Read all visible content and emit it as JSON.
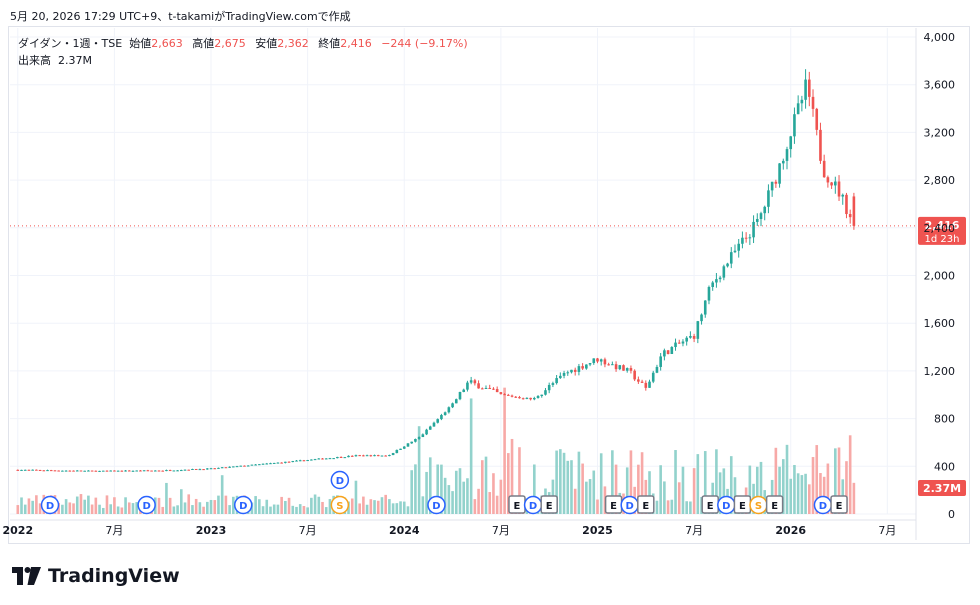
{
  "header": {
    "text": "5月 20, 2026 17:29 UTC+9、t-takamiがTradingView.comで作成"
  },
  "legend": {
    "symbol": "ダイダン・1週・TSE",
    "open_label": "始値",
    "open": "2,663",
    "high_label": "高値",
    "high": "2,675",
    "low_label": "安値",
    "low": "2,362",
    "close_label": "終値",
    "close": "2,416",
    "change": "−244 (−9.17%)",
    "volume_label": "出来高",
    "volume": "2.37M"
  },
  "price_tag": {
    "price": "2,416",
    "countdown": "1d 23h"
  },
  "volume_tag": "2.37M",
  "footer": {
    "brand": "TradingView"
  },
  "colors": {
    "up": "#26a69a",
    "down": "#ef5350",
    "up_vol": "#92d2cc",
    "down_vol": "#f7a9a7",
    "dividend": "#2962ff",
    "split": "#f7a21b",
    "grid": "#f0f3fa"
  },
  "chart_data": {
    "type": "candlestick",
    "title": "ダイダン・1週・TSE",
    "timeframe": "1週",
    "y_axis": {
      "ticks": [
        0,
        400,
        800,
        1200,
        1600,
        2000,
        2400,
        2800,
        3200,
        3600,
        4000
      ],
      "ylim": [
        0,
        4000
      ]
    },
    "x_axis": {
      "labels": [
        "2022",
        "7月",
        "2023",
        "7月",
        "2024",
        "7月",
        "2025",
        "7月",
        "2026",
        "7月"
      ]
    },
    "last_price": 2416,
    "approx_close_path": [
      {
        "date": "2022-01",
        "price": 370
      },
      {
        "date": "2022-06",
        "price": 360
      },
      {
        "date": "2022-10",
        "price": 365
      },
      {
        "date": "2023-01",
        "price": 380
      },
      {
        "date": "2023-06",
        "price": 440
      },
      {
        "date": "2023-10",
        "price": 490
      },
      {
        "date": "2023-12",
        "price": 490
      },
      {
        "date": "2024-02",
        "price": 650
      },
      {
        "date": "2024-04",
        "price": 920
      },
      {
        "date": "2024-05",
        "price": 1110
      },
      {
        "date": "2024-07",
        "price": 1000
      },
      {
        "date": "2024-09",
        "price": 960
      },
      {
        "date": "2024-11",
        "price": 1180
      },
      {
        "date": "2025-01",
        "price": 1300
      },
      {
        "date": "2025-03",
        "price": 1190
      },
      {
        "date": "2025-04",
        "price": 1050
      },
      {
        "date": "2025-05",
        "price": 1340
      },
      {
        "date": "2025-07",
        "price": 1500
      },
      {
        "date": "2025-08",
        "price": 1900
      },
      {
        "date": "2025-09",
        "price": 2100
      },
      {
        "date": "2025-11",
        "price": 2460
      },
      {
        "date": "2025-12",
        "price": 2800
      },
      {
        "date": "2026-02",
        "price": 3600
      },
      {
        "date": "2026-03",
        "price": 2900
      },
      {
        "date": "2026-04",
        "price": 2700
      },
      {
        "date": "2026-05",
        "price": 2416
      }
    ],
    "events": [
      {
        "type": "D",
        "date": "2022-03"
      },
      {
        "type": "D",
        "date": "2022-09"
      },
      {
        "type": "D",
        "date": "2023-03"
      },
      {
        "type": "D",
        "date": "2023-09"
      },
      {
        "type": "S",
        "date": "2023-09"
      },
      {
        "type": "D",
        "date": "2024-03"
      },
      {
        "type": "E",
        "date": "2024-08"
      },
      {
        "type": "D",
        "date": "2024-09"
      },
      {
        "type": "E",
        "date": "2024-10"
      },
      {
        "type": "E",
        "date": "2025-02"
      },
      {
        "type": "D",
        "date": "2025-03"
      },
      {
        "type": "E",
        "date": "2025-04"
      },
      {
        "type": "E",
        "date": "2025-08"
      },
      {
        "type": "D",
        "date": "2025-09"
      },
      {
        "type": "E",
        "date": "2025-10"
      },
      {
        "type": "S",
        "date": "2025-11"
      },
      {
        "type": "E",
        "date": "2025-12"
      },
      {
        "type": "D",
        "date": "2026-03"
      },
      {
        "type": "E",
        "date": "2026-04"
      }
    ]
  }
}
